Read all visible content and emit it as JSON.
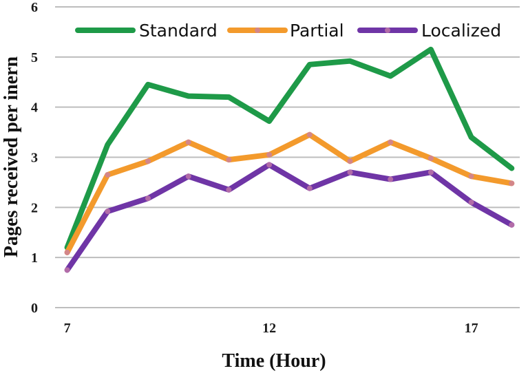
{
  "chart_data": {
    "type": "line",
    "xlabel": "Time (Hour)",
    "ylabel": "Pages received per inern",
    "xlim": [
      6.7,
      18.2
    ],
    "ylim": [
      0,
      6
    ],
    "x_ticks": [
      7,
      12,
      17
    ],
    "y_ticks": [
      0,
      1,
      2,
      3,
      4,
      5,
      6
    ],
    "grid": "horizontal",
    "legend_position": "top",
    "x": [
      7,
      8,
      9,
      10,
      11,
      12,
      13,
      14,
      15,
      16,
      17,
      18
    ],
    "series": [
      {
        "name": "Standard",
        "color": "#1e9a48",
        "marker": "none",
        "values": [
          1.2,
          3.25,
          4.45,
          4.22,
          4.2,
          3.72,
          4.85,
          4.92,
          4.62,
          5.15,
          3.4,
          2.78
        ]
      },
      {
        "name": "Partial",
        "color": "#f39a2c",
        "marker": "circle",
        "values": [
          1.1,
          2.65,
          2.92,
          3.3,
          2.95,
          3.05,
          3.45,
          2.92,
          3.3,
          2.98,
          2.62,
          2.48
        ]
      },
      {
        "name": "Localized",
        "color": "#6f35a6",
        "marker": "circle",
        "values": [
          0.75,
          1.92,
          2.18,
          2.62,
          2.35,
          2.85,
          2.38,
          2.7,
          2.56,
          2.7,
          2.1,
          1.65
        ]
      }
    ]
  }
}
